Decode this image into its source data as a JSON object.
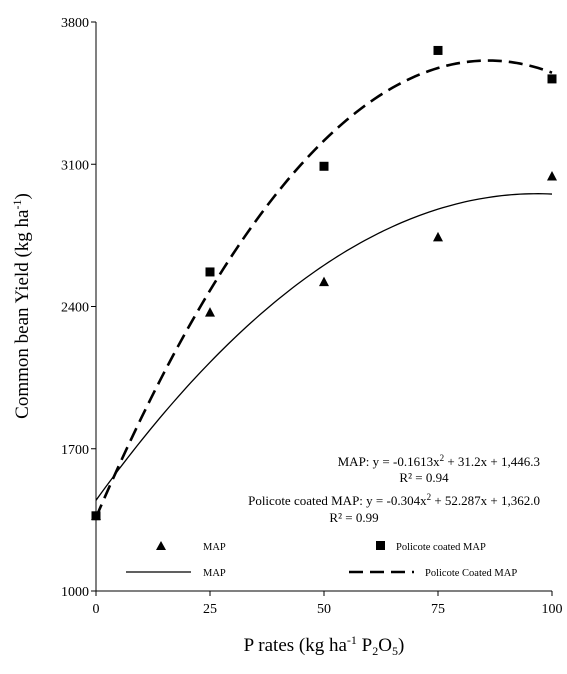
{
  "chart_data": {
    "type": "scatter",
    "xlabel": {
      "main": "P rates (kg ha",
      "sup": "-1",
      "mid": " P",
      "sub1": "2",
      "o": "O",
      "sub2": "5",
      "close": ")"
    },
    "ylabel": {
      "main": "Common bean Yield (kg ha",
      "sup": "-1",
      "close": ")"
    },
    "xlim": [
      0,
      100
    ],
    "ylim": [
      1000,
      3800
    ],
    "xticks": [
      "0",
      "25",
      "50",
      "75",
      "100"
    ],
    "yticks": [
      "1000",
      "1700",
      "2400",
      "3100",
      "3800"
    ],
    "grid": false,
    "series": [
      {
        "name": "MAP",
        "marker": "triangle",
        "x": [
          0,
          25,
          50,
          75,
          100
        ],
        "y": [
          1370,
          2370,
          2520,
          2740,
          3040
        ]
      },
      {
        "name": "Policote coated MAP",
        "marker": "square",
        "x": [
          0,
          25,
          50,
          75,
          100
        ],
        "y": [
          1370,
          2570,
          3090,
          3660,
          3520
        ]
      }
    ],
    "fits": [
      {
        "name": "MAP",
        "style": "solid",
        "a": -0.1613,
        "b": 31.2,
        "c": 1446.3
      },
      {
        "name": "Policote Coated MAP",
        "style": "dashed",
        "a": -0.304,
        "b": 52.287,
        "c": 1362.0
      }
    ],
    "annotations": {
      "map_eq": "MAP: y = -0.1613x",
      "map_eq_tail": " + 31.2x + 1,446.3",
      "map_r2": "R² = 0.94",
      "pc_eq": "Policote coated MAP: y = -0.304x",
      "pc_eq_tail": " + 52.287x + 1,362.0",
      "pc_r2": "R² = 0.99",
      "sq": "2"
    },
    "legend": {
      "placement": "bottom-inside",
      "map_points": "MAP",
      "pc_points": "Policote coated MAP",
      "map_line": "MAP",
      "pc_line": "Policote Coated MAP"
    }
  }
}
